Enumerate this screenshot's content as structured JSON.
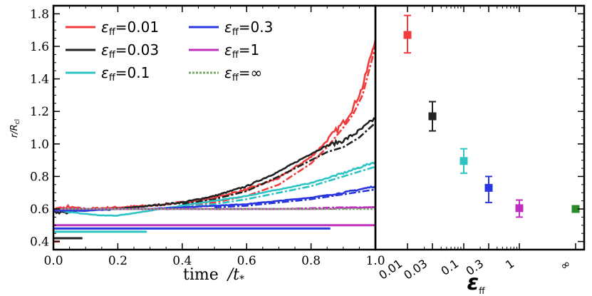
{
  "chart_data": [
    {
      "type": "line",
      "xlabel_main": "time",
      "xlabel_unit": "/t",
      "xlabel_sub": "*",
      "ylabel_main": "r/R",
      "ylabel_sub": "cl",
      "xlim": [
        0.0,
        1.0
      ],
      "ylim": [
        0.35,
        1.85
      ],
      "xticks": [
        "0.0",
        "0.2",
        "0.4",
        "0.6",
        "0.8",
        "1.0"
      ],
      "yticks": [
        "0.4",
        "0.6",
        "0.8",
        "1.0",
        "1.2",
        "1.4",
        "1.6",
        "1.8"
      ],
      "legend_symbol": "ε",
      "legend_sub": "ff",
      "series": [
        {
          "name": "ε_ff = 0.01",
          "label_value": "=0.01",
          "color": "#f03c3c",
          "dash": "",
          "x": [
            0.0,
            0.05,
            0.1,
            0.2,
            0.3,
            0.4,
            0.5,
            0.6,
            0.7,
            0.8,
            0.85,
            0.9,
            0.93,
            0.96,
            0.98,
            1.0
          ],
          "y": [
            0.6,
            0.61,
            0.6,
            0.61,
            0.62,
            0.64,
            0.67,
            0.72,
            0.79,
            0.92,
            1.02,
            1.13,
            1.22,
            1.35,
            1.5,
            1.65
          ],
          "noise": 0.012,
          "dash_x": [
            0.4,
            0.5,
            0.6,
            0.7,
            0.8,
            0.85,
            0.9,
            0.93,
            0.96,
            0.98,
            1.0
          ],
          "dash_y": [
            0.62,
            0.64,
            0.68,
            0.75,
            0.88,
            0.98,
            1.1,
            1.18,
            1.3,
            1.45,
            1.6
          ],
          "bar_xmax": 0.02,
          "bar_y": 0.4
        },
        {
          "name": "ε_ff = 0.03",
          "label_value": "=0.03",
          "color": "#222222",
          "dash": "",
          "x": [
            0.0,
            0.1,
            0.2,
            0.3,
            0.4,
            0.5,
            0.6,
            0.7,
            0.8,
            0.85,
            0.9,
            0.95,
            1.0
          ],
          "y": [
            0.58,
            0.59,
            0.6,
            0.62,
            0.64,
            0.68,
            0.74,
            0.83,
            0.94,
            0.99,
            1.02,
            1.08,
            1.16
          ],
          "noise": 0.008,
          "dash_x": [
            0.4,
            0.5,
            0.6,
            0.7,
            0.8,
            0.85,
            0.9,
            0.95,
            1.0
          ],
          "dash_y": [
            0.63,
            0.66,
            0.71,
            0.8,
            0.9,
            0.95,
            0.98,
            1.04,
            1.13
          ],
          "bar_xmax": 0.09,
          "bar_y": 0.42
        },
        {
          "name": "ε_ff = 0.1",
          "label_value": "=0.1",
          "color": "#2ec4c4",
          "dash": "",
          "x": [
            0.0,
            0.05,
            0.1,
            0.15,
            0.2,
            0.3,
            0.4,
            0.5,
            0.6,
            0.7,
            0.8,
            0.9,
            1.0
          ],
          "y": [
            0.6,
            0.58,
            0.57,
            0.56,
            0.56,
            0.59,
            0.62,
            0.65,
            0.68,
            0.72,
            0.76,
            0.82,
            0.89
          ],
          "noise": 0.004,
          "dash_x": [
            0.4,
            0.5,
            0.6,
            0.7,
            0.8,
            0.9,
            1.0
          ],
          "dash_y": [
            0.61,
            0.63,
            0.66,
            0.7,
            0.74,
            0.8,
            0.86
          ],
          "bar_xmax": 0.29,
          "bar_y": 0.46
        },
        {
          "name": "ε_ff = 0.3",
          "label_value": "=0.3",
          "color": "#2a36e0",
          "dash": "",
          "x": [
            0.0,
            0.1,
            0.2,
            0.3,
            0.4,
            0.5,
            0.6,
            0.7,
            0.8,
            0.9,
            1.0
          ],
          "y": [
            0.59,
            0.59,
            0.6,
            0.6,
            0.61,
            0.62,
            0.63,
            0.65,
            0.67,
            0.7,
            0.74
          ],
          "noise": 0.003,
          "dash_x": [
            0.5,
            0.6,
            0.7,
            0.8,
            0.9,
            1.0
          ],
          "dash_y": [
            0.61,
            0.62,
            0.64,
            0.66,
            0.69,
            0.72
          ],
          "bar_xmax": 0.86,
          "bar_y": 0.48
        },
        {
          "name": "ε_ff = 1",
          "label_value": "=1",
          "color": "#c030c0",
          "dash": "",
          "x": [
            0.0,
            0.2,
            0.4,
            0.6,
            0.8,
            1.0
          ],
          "y": [
            0.6,
            0.6,
            0.6,
            0.6,
            0.6,
            0.61
          ],
          "noise": 0.002,
          "dash_x": [
            0.5,
            0.7,
            0.9,
            1.0
          ],
          "dash_y": [
            0.6,
            0.6,
            0.61,
            0.61
          ],
          "bar_xmax": 1.0,
          "bar_y": 0.5
        },
        {
          "name": "ε_ff = ∞",
          "label_value": "=∞",
          "color": "#77aa66",
          "dash": "3,2",
          "x": [
            0.0,
            0.2,
            0.4,
            0.6,
            0.8,
            1.0
          ],
          "y": [
            0.6,
            0.6,
            0.6,
            0.6,
            0.6,
            0.6
          ],
          "noise": 0.0,
          "dash_x": [],
          "dash_y": [],
          "bar_xmax": null,
          "bar_y": null
        }
      ]
    },
    {
      "type": "scatter",
      "xlabel_symbol": "ε",
      "xlabel_sub": "ff",
      "ylim": [
        0.35,
        1.85
      ],
      "categories": [
        "0.01",
        "0.03",
        "0.1",
        "0.3",
        "1",
        "∞"
      ],
      "points": [
        {
          "label": "0.01",
          "value": 1.67,
          "err_low": 1.56,
          "err_high": 1.79,
          "color": "#f03c3c"
        },
        {
          "label": "0.03",
          "value": 1.17,
          "err_low": 1.08,
          "err_high": 1.26,
          "color": "#222222"
        },
        {
          "label": "0.1",
          "value": 0.895,
          "err_low": 0.82,
          "err_high": 0.97,
          "color": "#2ec4c4"
        },
        {
          "label": "0.3",
          "value": 0.73,
          "err_low": 0.64,
          "err_high": 0.8,
          "color": "#2a36e0"
        },
        {
          "label": "1",
          "value": 0.605,
          "err_low": 0.55,
          "err_high": 0.655,
          "color": "#c030c0"
        },
        {
          "label": "∞",
          "value": 0.6,
          "err_low": 0.6,
          "err_high": 0.6,
          "color": "#2a8a2a"
        }
      ]
    }
  ]
}
